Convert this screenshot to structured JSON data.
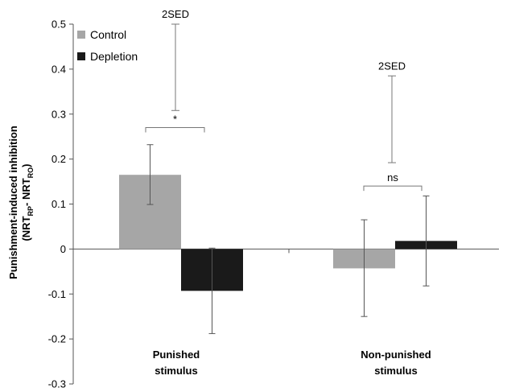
{
  "chart_data": {
    "type": "bar",
    "ylabel_line1": "Punishment-induced inhibition",
    "ylabel_line2": {
      "open": "(NRT",
      "sub1": "RP",
      "mid": "- NRT",
      "sub2": "RO",
      "close": ")"
    },
    "ylim": [
      -0.3,
      0.5
    ],
    "yticks": [
      -0.3,
      -0.2,
      -0.1,
      0,
      0.1,
      0.2,
      0.3,
      0.4,
      0.5
    ],
    "ytick_labels": [
      "-0.3",
      "-0.2",
      "-0.1",
      "0",
      "0.1",
      "0.2",
      "0.3",
      "0.4",
      "0.5"
    ],
    "categories": [
      {
        "line1": "Punished",
        "line2": "stimulus"
      },
      {
        "line1": "Non-punished",
        "line2": "stimulus"
      }
    ],
    "series": [
      {
        "name": "Control",
        "color": "#a6a6a6",
        "values": [
          0.165,
          -0.043
        ],
        "err_low": [
          0.099,
          -0.15
        ],
        "err_high": [
          0.232,
          0.065
        ]
      },
      {
        "name": "Depletion",
        "color": "#1a1a1a",
        "values": [
          -0.093,
          0.018
        ],
        "err_low": [
          -0.188,
          -0.082
        ],
        "err_high": [
          0.002,
          0.118
        ]
      }
    ],
    "legend": {
      "placement": "top-left"
    },
    "grid": false,
    "sed_bars": [
      {
        "label": "2SED",
        "low": 0.308,
        "high": 0.5
      },
      {
        "label": "2SED",
        "low": 0.192,
        "high": 0.385
      }
    ],
    "comparisons": [
      {
        "label": "*",
        "y": 0.27
      },
      {
        "label": "ns",
        "y": 0.14
      }
    ]
  }
}
